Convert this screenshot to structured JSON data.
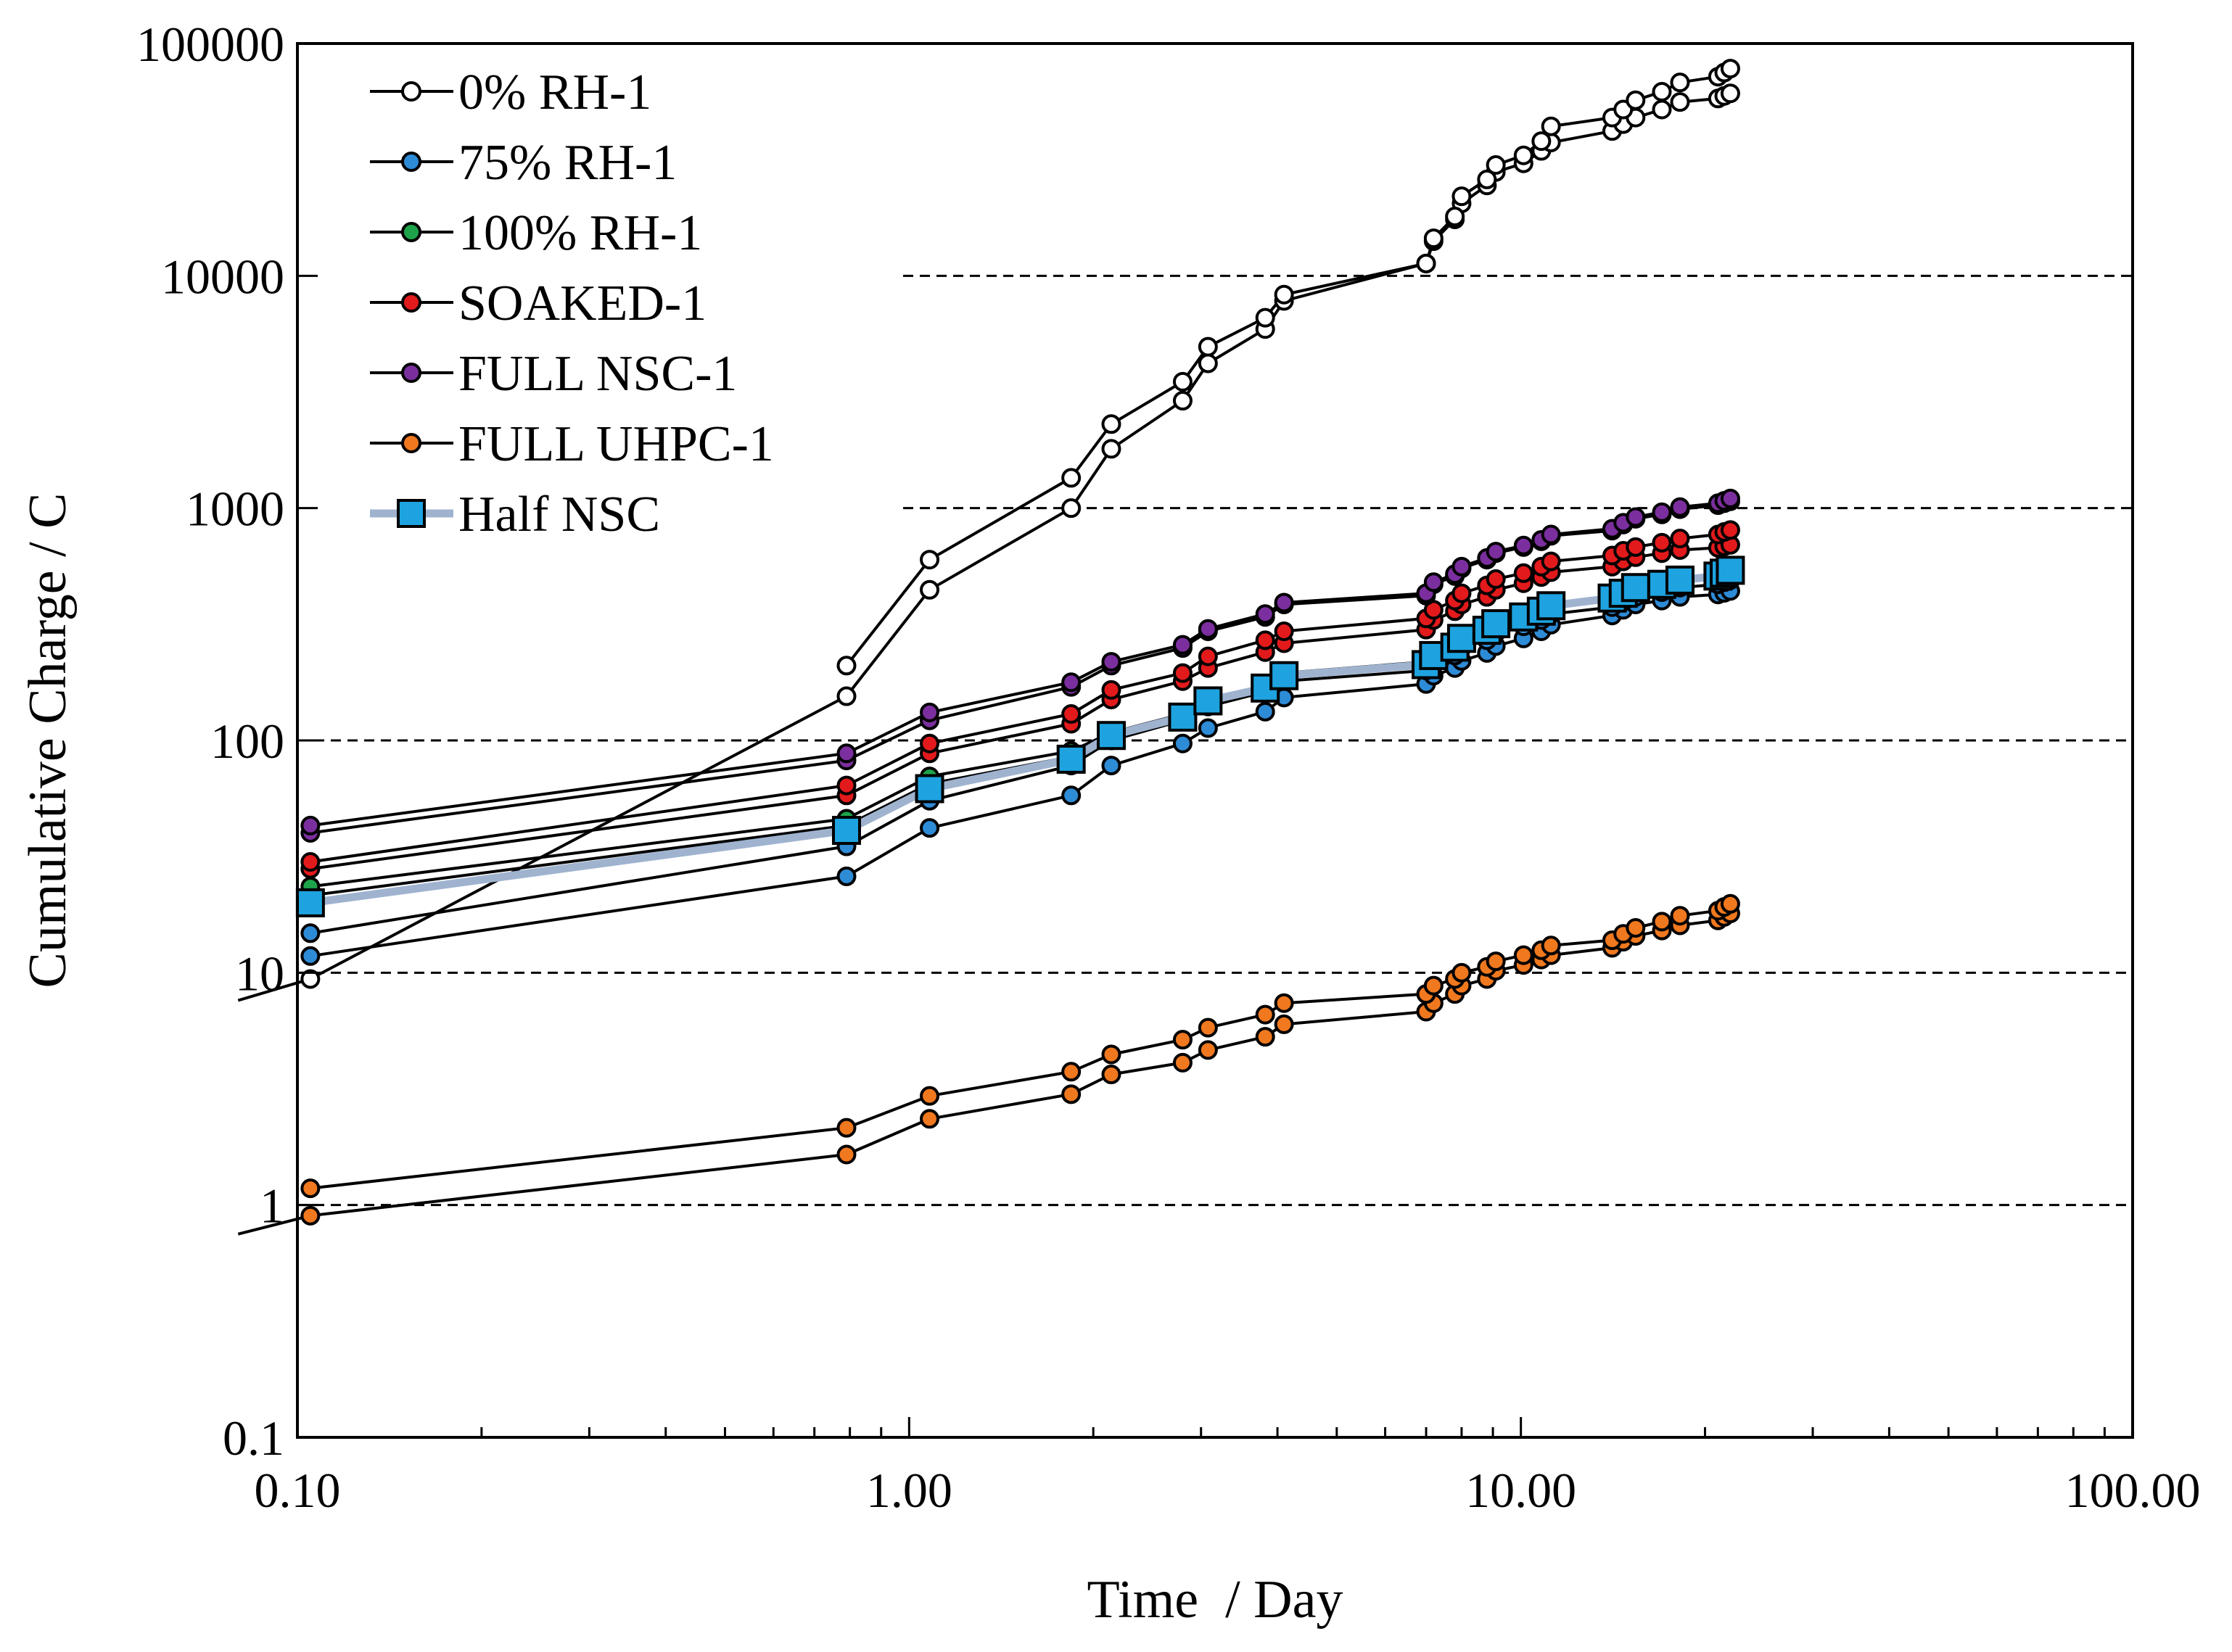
{
  "chart_data": {
    "type": "line",
    "title": "",
    "xlabel": "Time  / Day",
    "ylabel": "Cumulative Charge / C",
    "xscale": "log",
    "yscale": "log",
    "xlim": [
      0.1,
      100
    ],
    "ylim": [
      0.1,
      100000
    ],
    "x_tick_labels": [
      "0.10",
      "1.00",
      "10.00",
      "100.00"
    ],
    "y_tick_labels": [
      "0.1",
      "1",
      "10",
      "100",
      "1000",
      "10000",
      "100000"
    ],
    "grid": "horizontal dashed at 1, 10, 100, 1000, 10000",
    "legend_position": "top-left",
    "series": [
      {
        "name": "0% RH-1",
        "fill": "#ffffff",
        "marker": "circle",
        "line": "#000000",
        "runs": [
          {
            "x": [
              0.08,
              0.105,
              0.79,
              1.08,
              1.84,
              2.14,
              2.8,
              3.08,
              3.82,
              4.1,
              7.0,
              7.2,
              7.8,
              8.0,
              8.8,
              9.1,
              10.1,
              10.8,
              11.2,
              14.1,
              14.7,
              15.4,
              17.0,
              18.2,
              21.0,
              21.5,
              22.0
            ],
            "y": [
              7.6,
              9.4,
              155,
              445,
              1000,
              1800,
              2900,
              4200,
              5900,
              7800,
              11300,
              14100,
              17500,
              20500,
              24500,
              28000,
              30500,
              34500,
              37500,
              42000,
              45000,
              48000,
              52000,
              56000,
              58000,
              59500,
              61000
            ]
          },
          {
            "x": [
              0.79,
              1.08,
              1.84,
              2.14,
              2.8,
              3.08,
              3.82,
              4.1,
              7.0,
              7.2,
              7.8,
              8.0,
              8.8,
              9.1,
              10.1,
              10.8,
              11.2,
              14.1,
              14.7,
              15.4,
              17.0,
              18.2,
              21.0,
              21.5,
              22.0
            ],
            "y": [
              210,
              600,
              1350,
              2300,
              3500,
              4950,
              6600,
              8300,
              11300,
              14500,
              18000,
              22000,
              26000,
              30000,
              33000,
              38000,
              44000,
              48000,
              52000,
              57000,
              62000,
              68000,
              72000,
              75000,
              78000
            ]
          }
        ]
      },
      {
        "name": "75% RH-1",
        "fill": "#2e8bd6",
        "marker": "circle",
        "line": "#000000",
        "runs": [
          {
            "x": [
              0.105,
              0.79,
              1.08,
              1.84,
              2.14,
              2.8,
              3.08,
              3.82,
              4.1,
              7.0,
              7.2,
              7.8,
              8.0,
              8.8,
              9.1,
              10.1,
              10.8,
              11.2,
              14.1,
              14.7,
              15.4,
              17.0,
              18.2,
              21.0,
              21.5,
              22.0
            ],
            "y": [
              11.8,
              26,
              42,
              58,
              78,
              97,
              113,
              133,
              153,
              175,
              190,
              205,
              220,
              238,
              255,
              275,
              295,
              315,
              345,
              365,
              385,
              400,
              415,
              425,
              432,
              440
            ]
          },
          {
            "x": [
              0.105,
              0.79,
              1.08,
              1.84,
              2.14,
              2.8,
              3.08,
              3.82,
              4.1,
              7.0,
              7.2,
              7.8,
              8.0,
              8.8,
              9.1,
              10.1,
              10.8,
              11.2,
              14.1,
              14.7,
              15.4,
              17.0,
              18.2,
              21.0,
              21.5,
              22.0
            ],
            "y": [
              14.8,
              35,
              55,
              78,
              100,
              122,
              140,
              162,
              180,
              200,
              215,
              232,
              250,
              270,
              290,
              310,
              330,
              350,
              375,
              395,
              415,
              435,
              455,
              470,
              480,
              490
            ]
          }
        ]
      },
      {
        "name": "100% RH-1",
        "fill": "#1ea34a",
        "marker": "circle",
        "line": "#000000",
        "runs": [
          {
            "x": [
              0.105,
              0.79,
              1.08,
              1.84,
              2.14,
              2.8,
              3.08,
              3.82,
              4.1,
              7.0,
              7.2,
              7.8,
              8.0,
              8.8,
              9.1,
              10.1,
              10.8,
              11.2,
              14.1,
              14.7,
              15.4,
              17.0,
              18.2,
              21.0,
              21.5,
              22.0
            ],
            "y": [
              21.5,
              43,
              65,
              85,
              103,
              125,
              143,
              165,
              188,
              210,
              228,
              248,
              268,
              290,
              310,
              332,
              352,
              372,
              400,
              425,
              450,
              470,
              490,
              505,
              515,
              525
            ]
          },
          {
            "x": [
              0.105,
              0.79,
              1.08,
              1.84,
              2.14,
              2.8,
              3.08,
              3.82,
              4.1,
              7.0,
              7.2,
              7.8,
              8.0,
              8.8,
              9.1,
              10.1,
              10.8,
              11.2,
              14.1,
              14.7,
              15.4,
              17.0,
              18.2,
              21.0,
              21.5,
              22.0
            ],
            "y": [
              23.5,
              46,
              70,
              90,
              108,
              130,
              150,
              172,
              195,
              218,
              236,
              256,
              276,
              298,
              320,
              342,
              362,
              382,
              410,
              435,
              460,
              480,
              500,
              515,
              525,
              535
            ]
          }
        ]
      },
      {
        "name": "SOAKED-1",
        "fill": "#e31a1c",
        "marker": "circle",
        "line": "#000000",
        "runs": [
          {
            "x": [
              0.105,
              0.79,
              1.08,
              1.84,
              2.14,
              2.8,
              3.08,
              3.82,
              4.1,
              7.0,
              7.2,
              7.8,
              8.0,
              8.8,
              9.1,
              10.1,
              10.8,
              11.2,
              14.1,
              14.7,
              15.4,
              17.0,
              18.2,
              21.0,
              21.5,
              22.0
            ],
            "y": [
              28,
              58,
              88,
              118,
              150,
              180,
              205,
              240,
              262,
              300,
              330,
              360,
              385,
              415,
              445,
              475,
              505,
              530,
              560,
              590,
              615,
              640,
              660,
              675,
              685,
              695
            ]
          },
          {
            "x": [
              0.105,
              0.79,
              1.08,
              1.84,
              2.14,
              2.8,
              3.08,
              3.82,
              4.1,
              7.0,
              7.2,
              7.8,
              8.0,
              8.8,
              9.1,
              10.1,
              10.8,
              11.2,
              14.1,
              14.7,
              15.4,
              17.0,
              18.2,
              21.0,
              21.5,
              22.0
            ],
            "y": [
              30,
              64,
              97,
              130,
              165,
              195,
              230,
              270,
              295,
              335,
              365,
              400,
              430,
              465,
              495,
              525,
              560,
              590,
              625,
              655,
              680,
              710,
              740,
              770,
              790,
              805
            ]
          }
        ]
      },
      {
        "name": "FULL NSC-1",
        "fill": "#7b2f9e",
        "marker": "circle",
        "line": "#000000",
        "runs": [
          {
            "x": [
              0.105,
              0.79,
              1.08,
              1.84,
              2.14,
              2.8,
              3.08,
              3.82,
              4.1,
              7.0,
              7.2,
              7.8,
              8.0,
              8.8,
              9.1,
              10.1,
              10.8,
              11.2,
              14.1,
              14.7,
              15.4,
              17.0,
              18.2,
              21.0,
              21.5,
              22.0
            ],
            "y": [
              40,
              82,
              122,
              170,
              210,
              250,
              295,
              340,
              385,
              420,
              470,
              510,
              550,
              600,
              640,
              680,
              720,
              760,
              800,
              850,
              900,
              940,
              990,
              1030,
              1050,
              1070
            ]
          },
          {
            "x": [
              0.105,
              0.79,
              1.08,
              1.84,
              2.14,
              2.8,
              3.08,
              3.82,
              4.1,
              7.0,
              7.2,
              7.8,
              8.0,
              8.8,
              9.1,
              10.1,
              10.8,
              11.2,
              14.1,
              14.7,
              15.4,
              17.0,
              18.2,
              21.0,
              21.5,
              22.0
            ],
            "y": [
              43,
              88,
              132,
              178,
              218,
              258,
              302,
              350,
              392,
              430,
              480,
              520,
              560,
              610,
              650,
              690,
              730,
              770,
              815,
              865,
              915,
              960,
              1010,
              1050,
              1075,
              1100
            ]
          }
        ]
      },
      {
        "name": "FULL UHPC-1",
        "fill": "#f0781e",
        "marker": "circle",
        "line": "#000000",
        "runs": [
          {
            "x": [
              0.08,
              0.105,
              0.79,
              1.08,
              1.84,
              2.14,
              2.8,
              3.08,
              3.82,
              4.1,
              7.0,
              7.2,
              7.8,
              8.0,
              8.8,
              9.1,
              10.1,
              10.8,
              11.2,
              14.1,
              14.7,
              15.4,
              17.0,
              18.2,
              21.0,
              21.5,
              22.0
            ],
            "y": [
              0.75,
              0.9,
              1.65,
              2.35,
              3.0,
              3.65,
              4.1,
              4.65,
              5.3,
              6.0,
              6.8,
              7.4,
              8.1,
              8.8,
              9.4,
              10.2,
              10.8,
              11.4,
              11.9,
              12.8,
              13.6,
              14.4,
              15.2,
              16.0,
              16.8,
              17.4,
              18.0
            ]
          },
          {
            "x": [
              0.105,
              0.79,
              1.08,
              1.84,
              2.14,
              2.8,
              3.08,
              3.82,
              4.1,
              7.0,
              7.2,
              7.8,
              8.0,
              8.8,
              9.1,
              10.1,
              10.8,
              11.2,
              14.1,
              14.7,
              15.4,
              17.0,
              18.2,
              21.0,
              21.5,
              22.0
            ],
            "y": [
              1.18,
              2.15,
              2.95,
              3.75,
              4.45,
              5.15,
              5.8,
              6.6,
              7.4,
              8.1,
              8.8,
              9.4,
              10.0,
              10.6,
              11.2,
              11.9,
              12.5,
              13.1,
              13.8,
              14.7,
              15.6,
              16.6,
              17.6,
              18.5,
              19.2,
              19.8
            ]
          }
        ]
      },
      {
        "name": "Half NSC",
        "fill": "#1ea3e0",
        "marker": "square",
        "line": "#9fb3cf",
        "runs": [
          {
            "x": [
              0.105,
              0.79,
              1.08,
              1.84,
              2.14,
              2.8,
              3.08,
              3.82,
              4.1,
              7.0,
              7.2,
              7.8,
              8.0,
              8.8,
              9.1,
              10.1,
              10.8,
              11.2,
              14.1,
              14.7,
              15.4,
              17.0,
              18.2,
              21.0,
              21.5,
              22.0
            ],
            "y": [
              20,
              41,
              62,
              83,
              105,
              126,
              148,
              168,
              190,
              212,
              232,
              252,
              275,
              298,
              318,
              340,
              360,
              380,
              410,
              430,
              455,
              470,
              490,
              510,
              525,
              540
            ]
          }
        ]
      }
    ]
  }
}
